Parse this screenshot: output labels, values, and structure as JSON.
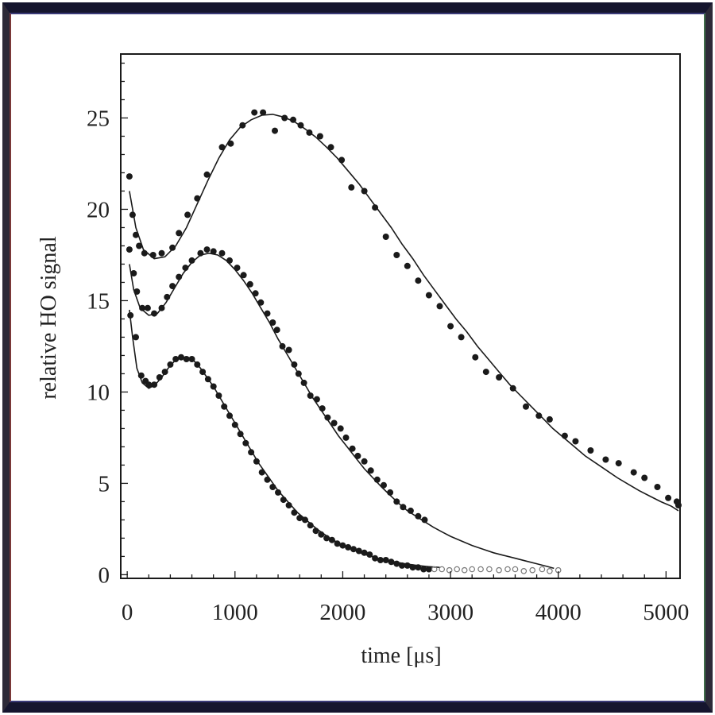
{
  "chart_data": {
    "type": "scatter",
    "xlabel": "time [μs]",
    "ylabel": "relative HO signal",
    "xlim": [
      -60,
      5130
    ],
    "ylim": [
      -0.2,
      28.5
    ],
    "xticks": [
      0,
      1000,
      2000,
      3000,
      4000,
      5000
    ],
    "yticks": [
      0,
      5,
      10,
      15,
      20,
      25
    ],
    "grid": false,
    "legend": "none",
    "style": {
      "marker_color": "#1a1a1a",
      "line_color": "#1a1a1a",
      "hollow_marker_color": "#777777"
    },
    "series": [
      {
        "points": [
          [
            20,
            21.8
          ],
          [
            50,
            19.7
          ],
          [
            80,
            18.6
          ],
          [
            110,
            18.0
          ],
          [
            160,
            17.6
          ],
          [
            240,
            17.5
          ],
          [
            320,
            17.6
          ],
          [
            420,
            17.9
          ],
          [
            480,
            18.7
          ],
          [
            560,
            19.7
          ],
          [
            650,
            20.6
          ],
          [
            740,
            21.9
          ],
          [
            880,
            23.4
          ],
          [
            960,
            23.6
          ],
          [
            1070,
            24.6
          ],
          [
            1180,
            25.3
          ],
          [
            1260,
            25.3
          ],
          [
            1370,
            24.3
          ],
          [
            1460,
            25.0
          ],
          [
            1540,
            24.9
          ],
          [
            1610,
            24.6
          ],
          [
            1690,
            24.2
          ],
          [
            1790,
            24.0
          ],
          [
            1890,
            23.4
          ],
          [
            1990,
            22.7
          ],
          [
            2080,
            21.2
          ],
          [
            2200,
            21.0
          ],
          [
            2300,
            20.1
          ],
          [
            2400,
            18.5
          ],
          [
            2500,
            17.5
          ],
          [
            2600,
            16.9
          ],
          [
            2700,
            16.1
          ],
          [
            2800,
            15.3
          ],
          [
            2900,
            14.7
          ],
          [
            3000,
            13.6
          ],
          [
            3100,
            13.0
          ],
          [
            3230,
            11.9
          ],
          [
            3330,
            11.1
          ],
          [
            3450,
            10.8
          ],
          [
            3580,
            10.2
          ],
          [
            3700,
            9.2
          ],
          [
            3820,
            8.7
          ],
          [
            3920,
            8.5
          ],
          [
            4060,
            7.6
          ],
          [
            4160,
            7.3
          ],
          [
            4300,
            6.8
          ],
          [
            4440,
            6.3
          ],
          [
            4560,
            6.1
          ],
          [
            4700,
            5.6
          ],
          [
            4800,
            5.3
          ],
          [
            4920,
            4.8
          ],
          [
            5020,
            4.2
          ],
          [
            5100,
            4.0
          ],
          [
            5180,
            3.8
          ]
        ],
        "fit": [
          [
            20,
            21.0
          ],
          [
            80,
            19.0
          ],
          [
            150,
            17.8
          ],
          [
            250,
            17.3
          ],
          [
            350,
            17.4
          ],
          [
            450,
            18.0
          ],
          [
            550,
            19.0
          ],
          [
            650,
            20.3
          ],
          [
            750,
            21.6
          ],
          [
            850,
            22.8
          ],
          [
            950,
            23.8
          ],
          [
            1050,
            24.5
          ],
          [
            1150,
            24.9
          ],
          [
            1250,
            25.15
          ],
          [
            1350,
            25.2
          ],
          [
            1450,
            25.05
          ],
          [
            1550,
            24.8
          ],
          [
            1650,
            24.4
          ],
          [
            1750,
            23.95
          ],
          [
            1850,
            23.4
          ],
          [
            1950,
            22.8
          ],
          [
            2050,
            22.1
          ],
          [
            2150,
            21.4
          ],
          [
            2250,
            20.6
          ],
          [
            2350,
            19.8
          ],
          [
            2450,
            19.0
          ],
          [
            2550,
            18.1
          ],
          [
            2650,
            17.3
          ],
          [
            2750,
            16.4
          ],
          [
            2850,
            15.6
          ],
          [
            2950,
            14.8
          ],
          [
            3050,
            14.0
          ],
          [
            3150,
            13.3
          ],
          [
            3250,
            12.5
          ],
          [
            3350,
            11.8
          ],
          [
            3450,
            11.1
          ],
          [
            3550,
            10.4
          ],
          [
            3650,
            9.8
          ],
          [
            3750,
            9.2
          ],
          [
            3850,
            8.6
          ],
          [
            3950,
            8.0
          ],
          [
            4050,
            7.5
          ],
          [
            4150,
            7.0
          ],
          [
            4250,
            6.5
          ],
          [
            4350,
            6.1
          ],
          [
            4450,
            5.7
          ],
          [
            4550,
            5.3
          ],
          [
            4650,
            4.95
          ],
          [
            4750,
            4.6
          ],
          [
            4850,
            4.3
          ],
          [
            4950,
            4.0
          ],
          [
            5050,
            3.75
          ],
          [
            5180,
            3.5
          ]
        ]
      },
      {
        "points": [
          [
            20,
            17.8
          ],
          [
            60,
            16.5
          ],
          [
            90,
            15.5
          ],
          [
            140,
            14.6
          ],
          [
            190,
            14.6
          ],
          [
            250,
            14.3
          ],
          [
            320,
            14.6
          ],
          [
            370,
            15.2
          ],
          [
            420,
            15.8
          ],
          [
            480,
            16.3
          ],
          [
            540,
            16.8
          ],
          [
            600,
            17.2
          ],
          [
            680,
            17.6
          ],
          [
            740,
            17.8
          ],
          [
            800,
            17.7
          ],
          [
            880,
            17.6
          ],
          [
            950,
            17.2
          ],
          [
            1020,
            16.8
          ],
          [
            1080,
            16.4
          ],
          [
            1140,
            15.9
          ],
          [
            1190,
            15.4
          ],
          [
            1240,
            14.9
          ],
          [
            1300,
            14.3
          ],
          [
            1350,
            13.8
          ],
          [
            1390,
            13.4
          ],
          [
            1440,
            12.5
          ],
          [
            1500,
            12.3
          ],
          [
            1550,
            11.5
          ],
          [
            1590,
            11.0
          ],
          [
            1640,
            10.5
          ],
          [
            1700,
            9.8
          ],
          [
            1760,
            9.6
          ],
          [
            1810,
            9.1
          ],
          [
            1860,
            8.6
          ],
          [
            1920,
            8.3
          ],
          [
            1980,
            8.0
          ],
          [
            2030,
            7.5
          ],
          [
            2090,
            6.9
          ],
          [
            2140,
            6.5
          ],
          [
            2200,
            6.2
          ],
          [
            2260,
            5.7
          ],
          [
            2320,
            5.2
          ],
          [
            2380,
            4.9
          ],
          [
            2440,
            4.5
          ],
          [
            2500,
            4.0
          ],
          [
            2560,
            3.7
          ],
          [
            2630,
            3.5
          ],
          [
            2700,
            3.2
          ],
          [
            2760,
            3.0
          ]
        ],
        "fit": [
          [
            20,
            17.0
          ],
          [
            60,
            15.6
          ],
          [
            120,
            14.6
          ],
          [
            200,
            14.2
          ],
          [
            280,
            14.3
          ],
          [
            360,
            14.9
          ],
          [
            440,
            15.7
          ],
          [
            520,
            16.5
          ],
          [
            600,
            17.1
          ],
          [
            680,
            17.5
          ],
          [
            760,
            17.6
          ],
          [
            840,
            17.5
          ],
          [
            920,
            17.2
          ],
          [
            1000,
            16.7
          ],
          [
            1080,
            16.1
          ],
          [
            1160,
            15.4
          ],
          [
            1240,
            14.6
          ],
          [
            1320,
            13.8
          ],
          [
            1400,
            12.9
          ],
          [
            1480,
            12.1
          ],
          [
            1560,
            11.3
          ],
          [
            1640,
            10.5
          ],
          [
            1720,
            9.7
          ],
          [
            1800,
            9.0
          ],
          [
            1880,
            8.3
          ],
          [
            1960,
            7.6
          ],
          [
            2040,
            7.0
          ],
          [
            2120,
            6.4
          ],
          [
            2200,
            5.8
          ],
          [
            2280,
            5.3
          ],
          [
            2360,
            4.8
          ],
          [
            2440,
            4.35
          ],
          [
            2520,
            3.9
          ],
          [
            2600,
            3.5
          ],
          [
            2680,
            3.2
          ],
          [
            2760,
            2.9
          ],
          [
            2840,
            2.6
          ],
          [
            2920,
            2.35
          ],
          [
            3000,
            2.1
          ],
          [
            3100,
            1.85
          ],
          [
            3200,
            1.6
          ],
          [
            3300,
            1.4
          ],
          [
            3400,
            1.2
          ],
          [
            3500,
            1.05
          ],
          [
            3600,
            0.9
          ],
          [
            3700,
            0.75
          ],
          [
            3800,
            0.6
          ],
          [
            3900,
            0.45
          ],
          [
            3960,
            0.35
          ]
        ]
      },
      {
        "points": [
          [
            30,
            14.2
          ],
          [
            80,
            13.0
          ],
          [
            130,
            10.9
          ],
          [
            170,
            10.6
          ],
          [
            200,
            10.4
          ],
          [
            250,
            10.4
          ],
          [
            300,
            10.8
          ],
          [
            350,
            11.1
          ],
          [
            400,
            11.5
          ],
          [
            450,
            11.8
          ],
          [
            500,
            11.9
          ],
          [
            550,
            11.8
          ],
          [
            600,
            11.8
          ],
          [
            650,
            11.5
          ],
          [
            700,
            11.1
          ],
          [
            750,
            10.7
          ],
          [
            800,
            10.3
          ],
          [
            850,
            9.8
          ],
          [
            900,
            9.2
          ],
          [
            950,
            8.7
          ],
          [
            1000,
            8.2
          ],
          [
            1050,
            7.7
          ],
          [
            1100,
            7.2
          ],
          [
            1150,
            6.7
          ],
          [
            1200,
            6.2
          ],
          [
            1250,
            5.6
          ],
          [
            1300,
            5.2
          ],
          [
            1350,
            4.8
          ],
          [
            1400,
            4.5
          ],
          [
            1450,
            4.1
          ],
          [
            1500,
            3.8
          ],
          [
            1550,
            3.4
          ],
          [
            1600,
            3.1
          ],
          [
            1650,
            3.0
          ],
          [
            1700,
            2.7
          ],
          [
            1750,
            2.4
          ],
          [
            1800,
            2.2
          ],
          [
            1850,
            2.0
          ],
          [
            1900,
            1.9
          ],
          [
            1950,
            1.7
          ],
          [
            2000,
            1.6
          ],
          [
            2050,
            1.5
          ],
          [
            2100,
            1.4
          ],
          [
            2150,
            1.3
          ],
          [
            2200,
            1.2
          ],
          [
            2250,
            1.1
          ],
          [
            2300,
            0.9
          ],
          [
            2350,
            0.8
          ],
          [
            2400,
            0.8
          ],
          [
            2450,
            0.7
          ],
          [
            2500,
            0.6
          ],
          [
            2550,
            0.5
          ],
          [
            2600,
            0.5
          ],
          [
            2650,
            0.4
          ],
          [
            2700,
            0.4
          ],
          [
            2750,
            0.3
          ],
          [
            2800,
            0.3
          ]
        ],
        "hollow_points": [
          [
            2850,
            0.3
          ],
          [
            2920,
            0.3
          ],
          [
            2990,
            0.25
          ],
          [
            3060,
            0.3
          ],
          [
            3130,
            0.25
          ],
          [
            3200,
            0.3
          ],
          [
            3280,
            0.3
          ],
          [
            3360,
            0.3
          ],
          [
            3450,
            0.25
          ],
          [
            3530,
            0.3
          ],
          [
            3600,
            0.3
          ],
          [
            3680,
            0.2
          ],
          [
            3760,
            0.25
          ],
          [
            3850,
            0.3
          ],
          [
            3920,
            0.2
          ],
          [
            4000,
            0.25
          ]
        ],
        "fit": [
          [
            20,
            14.5
          ],
          [
            50,
            13.0
          ],
          [
            90,
            11.3
          ],
          [
            140,
            10.5
          ],
          [
            200,
            10.2
          ],
          [
            260,
            10.4
          ],
          [
            320,
            10.8
          ],
          [
            380,
            11.3
          ],
          [
            440,
            11.7
          ],
          [
            500,
            11.9
          ],
          [
            560,
            11.9
          ],
          [
            620,
            11.7
          ],
          [
            680,
            11.3
          ],
          [
            740,
            10.8
          ],
          [
            800,
            10.3
          ],
          [
            860,
            9.7
          ],
          [
            920,
            9.1
          ],
          [
            980,
            8.5
          ],
          [
            1040,
            7.9
          ],
          [
            1100,
            7.3
          ],
          [
            1160,
            6.7
          ],
          [
            1220,
            6.1
          ],
          [
            1280,
            5.6
          ],
          [
            1340,
            5.1
          ],
          [
            1400,
            4.6
          ],
          [
            1460,
            4.2
          ],
          [
            1520,
            3.8
          ],
          [
            1580,
            3.4
          ],
          [
            1640,
            3.1
          ],
          [
            1700,
            2.8
          ],
          [
            1760,
            2.5
          ],
          [
            1820,
            2.25
          ],
          [
            1880,
            2.0
          ],
          [
            1940,
            1.8
          ],
          [
            2000,
            1.6
          ],
          [
            2080,
            1.4
          ],
          [
            2160,
            1.2
          ],
          [
            2240,
            1.05
          ],
          [
            2320,
            0.9
          ],
          [
            2400,
            0.8
          ],
          [
            2500,
            0.68
          ],
          [
            2600,
            0.58
          ],
          [
            2700,
            0.5
          ],
          [
            2800,
            0.44
          ],
          [
            2900,
            0.4
          ]
        ]
      }
    ]
  }
}
